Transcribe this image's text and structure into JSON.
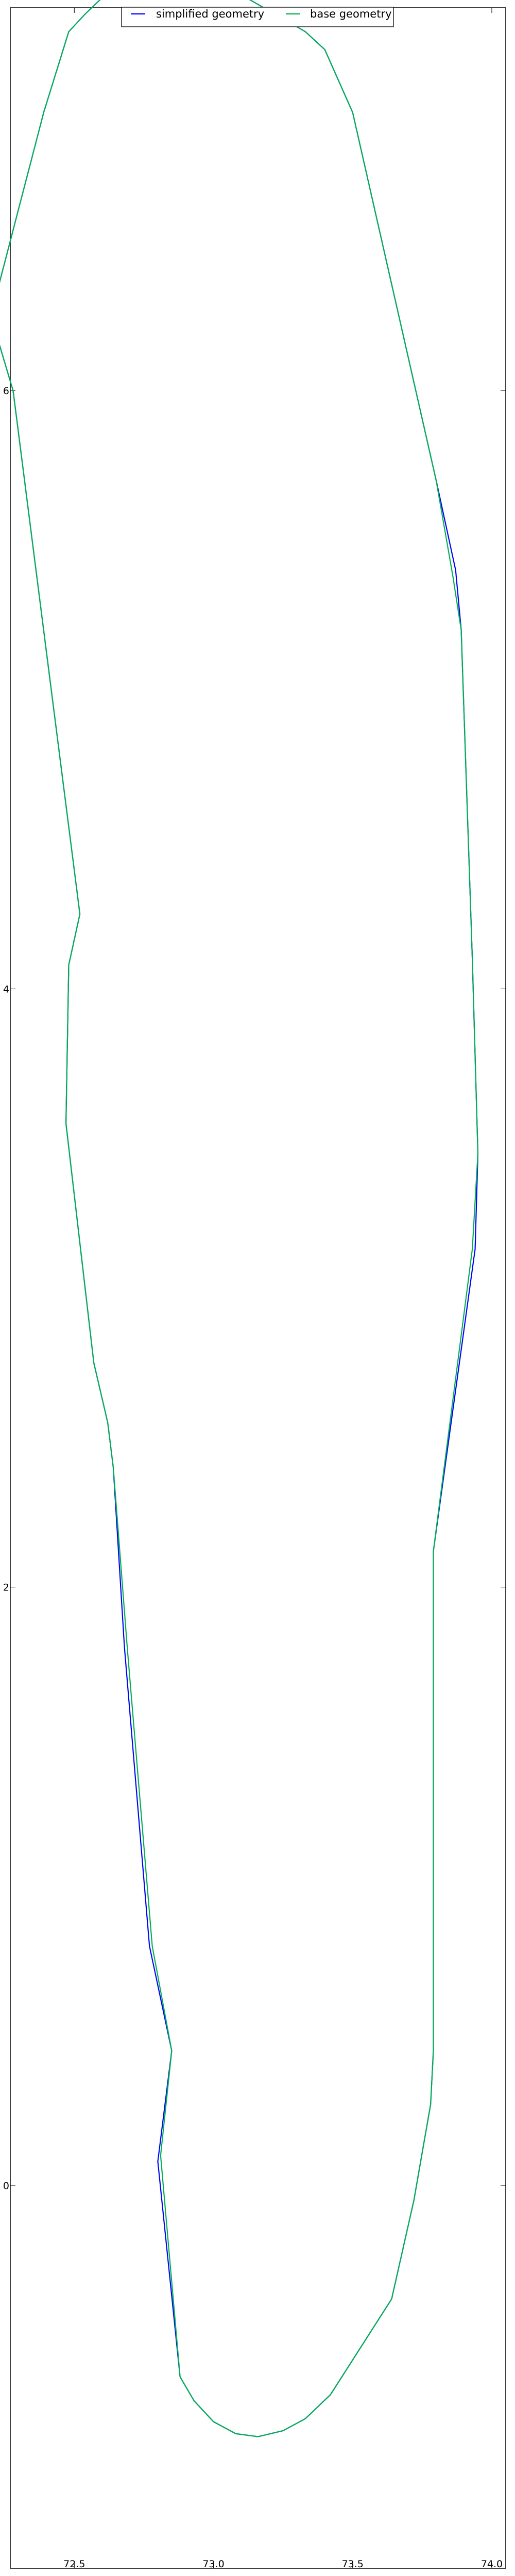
{
  "chart_data": {
    "type": "line",
    "title": "",
    "xlabel": "",
    "ylabel": "",
    "xlim": [
      72.27,
      74.05
    ],
    "ylim": [
      -1.28,
      7.28
    ],
    "xticks": [
      72.5,
      73.0,
      73.5,
      74.0
    ],
    "xtick_labels": [
      "72.5",
      "73.0",
      "73.5",
      "74.0"
    ],
    "yticks": [
      0,
      2,
      4,
      6
    ],
    "ytick_labels": [
      "0",
      "2",
      "4",
      "6"
    ],
    "grid": false,
    "legend_position": "top-center",
    "series": [
      {
        "name": "simplified geometry",
        "color": "#0000ff",
        "points": [
          [
            72.85,
            0.45
          ],
          [
            72.8,
            0.08
          ],
          [
            72.88,
            -0.64
          ],
          [
            72.93,
            -0.72
          ],
          [
            73.0,
            -0.79
          ],
          [
            73.08,
            -0.83
          ],
          [
            73.16,
            -0.84
          ],
          [
            73.25,
            -0.82
          ],
          [
            73.33,
            -0.78
          ],
          [
            73.42,
            -0.7
          ],
          [
            73.64,
            -0.38
          ],
          [
            73.72,
            -0.05
          ],
          [
            73.78,
            0.27
          ],
          [
            73.79,
            0.45
          ],
          [
            73.79,
            2.12
          ],
          [
            73.94,
            3.13
          ],
          [
            73.95,
            3.45
          ],
          [
            73.93,
            4.1
          ],
          [
            73.89,
            5.2
          ],
          [
            73.87,
            5.4
          ],
          [
            73.8,
            5.7
          ],
          [
            73.5,
            6.93
          ],
          [
            73.4,
            7.14
          ],
          [
            73.33,
            7.2
          ],
          [
            73.05,
            7.35
          ],
          [
            72.92,
            7.41
          ],
          [
            72.87,
            7.4
          ],
          [
            72.7,
            7.38
          ],
          [
            72.63,
            7.34
          ],
          [
            72.54,
            7.26
          ],
          [
            72.48,
            7.2
          ],
          [
            72.39,
            6.93
          ],
          [
            72.2,
            6.25
          ],
          [
            72.28,
            6.0
          ],
          [
            72.52,
            4.25
          ],
          [
            72.48,
            4.08
          ],
          [
            72.47,
            3.55
          ],
          [
            72.57,
            2.75
          ],
          [
            72.62,
            2.55
          ],
          [
            72.64,
            2.4
          ],
          [
            72.68,
            1.8
          ],
          [
            72.77,
            0.8
          ],
          [
            72.85,
            0.45
          ]
        ]
      },
      {
        "name": "base geometry",
        "color": "#00b050",
        "points": [
          [
            72.85,
            0.45
          ],
          [
            72.81,
            0.1
          ],
          [
            72.88,
            -0.64
          ],
          [
            72.93,
            -0.72
          ],
          [
            73.0,
            -0.79
          ],
          [
            73.08,
            -0.83
          ],
          [
            73.16,
            -0.84
          ],
          [
            73.25,
            -0.82
          ],
          [
            73.33,
            -0.78
          ],
          [
            73.42,
            -0.7
          ],
          [
            73.64,
            -0.38
          ],
          [
            73.72,
            -0.05
          ],
          [
            73.78,
            0.27
          ],
          [
            73.79,
            0.45
          ],
          [
            73.79,
            2.12
          ],
          [
            73.93,
            3.13
          ],
          [
            73.95,
            3.45
          ],
          [
            73.93,
            4.1
          ],
          [
            73.89,
            5.2
          ],
          [
            73.86,
            5.38
          ],
          [
            73.8,
            5.7
          ],
          [
            73.5,
            6.93
          ],
          [
            73.4,
            7.14
          ],
          [
            73.33,
            7.2
          ],
          [
            73.05,
            7.35
          ],
          [
            72.92,
            7.41
          ],
          [
            72.87,
            7.4
          ],
          [
            72.7,
            7.38
          ],
          [
            72.63,
            7.34
          ],
          [
            72.54,
            7.26
          ],
          [
            72.48,
            7.2
          ],
          [
            72.39,
            6.93
          ],
          [
            72.2,
            6.25
          ],
          [
            72.28,
            6.0
          ],
          [
            72.52,
            4.25
          ],
          [
            72.48,
            4.08
          ],
          [
            72.47,
            3.55
          ],
          [
            72.57,
            2.75
          ],
          [
            72.62,
            2.55
          ],
          [
            72.64,
            2.4
          ],
          [
            72.69,
            1.8
          ],
          [
            72.78,
            0.8
          ],
          [
            72.85,
            0.45
          ]
        ]
      }
    ],
    "legend": {
      "entries": [
        "simplified geometry",
        "base geometry"
      ]
    }
  }
}
